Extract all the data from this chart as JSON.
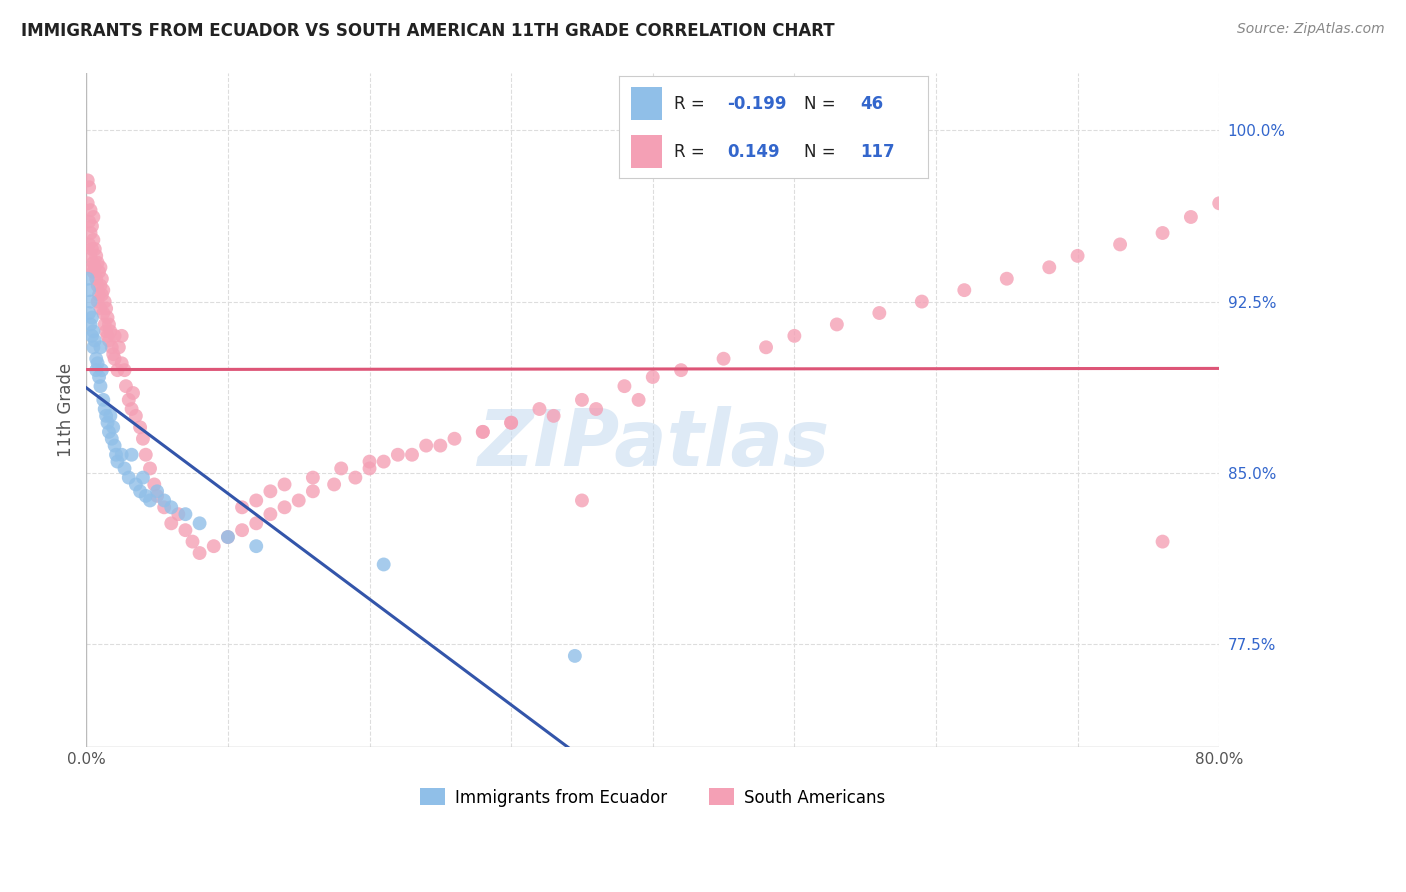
{
  "title": "IMMIGRANTS FROM ECUADOR VS SOUTH AMERICAN 11TH GRADE CORRELATION CHART",
  "source": "Source: ZipAtlas.com",
  "ylabel": "11th Grade",
  "xlim": [
    0.0,
    0.8
  ],
  "ylim": [
    0.73,
    1.025
  ],
  "xtick_positions": [
    0.0,
    0.1,
    0.2,
    0.3,
    0.4,
    0.5,
    0.6,
    0.7,
    0.8
  ],
  "xticklabels": [
    "0.0%",
    "",
    "",
    "",
    "",
    "",
    "",
    "",
    "80.0%"
  ],
  "ytick_right_pos": [
    1.0,
    0.925,
    0.85,
    0.775
  ],
  "ytick_right_labels": [
    "100.0%",
    "92.5%",
    "85.0%",
    "77.5%"
  ],
  "blue_color": "#90BFE8",
  "pink_color": "#F4A0B5",
  "blue_line_color": "#3355AA",
  "pink_line_color": "#DD5577",
  "watermark_color": "#C8DCF0",
  "ecuador_x": [
    0.001,
    0.002,
    0.002,
    0.003,
    0.003,
    0.004,
    0.004,
    0.005,
    0.005,
    0.006,
    0.007,
    0.007,
    0.008,
    0.009,
    0.01,
    0.01,
    0.011,
    0.012,
    0.013,
    0.014,
    0.015,
    0.016,
    0.017,
    0.018,
    0.019,
    0.02,
    0.021,
    0.022,
    0.025,
    0.027,
    0.03,
    0.032,
    0.035,
    0.038,
    0.04,
    0.042,
    0.045,
    0.05,
    0.055,
    0.06,
    0.07,
    0.08,
    0.1,
    0.12,
    0.21,
    0.345
  ],
  "ecuador_y": [
    0.935,
    0.93,
    0.92,
    0.925,
    0.915,
    0.918,
    0.91,
    0.912,
    0.905,
    0.908,
    0.9,
    0.895,
    0.898,
    0.892,
    0.905,
    0.888,
    0.895,
    0.882,
    0.878,
    0.875,
    0.872,
    0.868,
    0.875,
    0.865,
    0.87,
    0.862,
    0.858,
    0.855,
    0.858,
    0.852,
    0.848,
    0.858,
    0.845,
    0.842,
    0.848,
    0.84,
    0.838,
    0.842,
    0.838,
    0.835,
    0.832,
    0.828,
    0.822,
    0.818,
    0.81,
    0.77
  ],
  "south_x": [
    0.001,
    0.001,
    0.002,
    0.002,
    0.002,
    0.003,
    0.003,
    0.003,
    0.004,
    0.004,
    0.004,
    0.005,
    0.005,
    0.005,
    0.005,
    0.006,
    0.006,
    0.007,
    0.007,
    0.008,
    0.008,
    0.008,
    0.009,
    0.009,
    0.01,
    0.01,
    0.01,
    0.011,
    0.011,
    0.012,
    0.012,
    0.013,
    0.013,
    0.014,
    0.014,
    0.015,
    0.015,
    0.016,
    0.016,
    0.017,
    0.018,
    0.019,
    0.02,
    0.02,
    0.022,
    0.023,
    0.025,
    0.025,
    0.027,
    0.028,
    0.03,
    0.032,
    0.033,
    0.035,
    0.038,
    0.04,
    0.042,
    0.045,
    0.048,
    0.05,
    0.055,
    0.06,
    0.065,
    0.07,
    0.075,
    0.08,
    0.09,
    0.1,
    0.11,
    0.12,
    0.13,
    0.14,
    0.15,
    0.16,
    0.175,
    0.19,
    0.2,
    0.21,
    0.23,
    0.25,
    0.28,
    0.3,
    0.32,
    0.35,
    0.38,
    0.4,
    0.42,
    0.45,
    0.48,
    0.5,
    0.53,
    0.56,
    0.59,
    0.62,
    0.65,
    0.68,
    0.7,
    0.73,
    0.76,
    0.78,
    0.8,
    0.35,
    0.11,
    0.12,
    0.13,
    0.14,
    0.16,
    0.18,
    0.2,
    0.22,
    0.24,
    0.26,
    0.28,
    0.3,
    0.33,
    0.36,
    0.39,
    0.76
  ],
  "south_y": [
    0.978,
    0.968,
    0.975,
    0.96,
    0.95,
    0.965,
    0.955,
    0.945,
    0.958,
    0.948,
    0.94,
    0.962,
    0.952,
    0.942,
    0.938,
    0.948,
    0.94,
    0.945,
    0.935,
    0.942,
    0.932,
    0.925,
    0.938,
    0.928,
    0.94,
    0.932,
    0.922,
    0.935,
    0.928,
    0.93,
    0.92,
    0.925,
    0.915,
    0.922,
    0.912,
    0.918,
    0.91,
    0.915,
    0.908,
    0.912,
    0.905,
    0.902,
    0.91,
    0.9,
    0.895,
    0.905,
    0.91,
    0.898,
    0.895,
    0.888,
    0.882,
    0.878,
    0.885,
    0.875,
    0.87,
    0.865,
    0.858,
    0.852,
    0.845,
    0.84,
    0.835,
    0.828,
    0.832,
    0.825,
    0.82,
    0.815,
    0.818,
    0.822,
    0.825,
    0.828,
    0.832,
    0.835,
    0.838,
    0.842,
    0.845,
    0.848,
    0.852,
    0.855,
    0.858,
    0.862,
    0.868,
    0.872,
    0.878,
    0.882,
    0.888,
    0.892,
    0.895,
    0.9,
    0.905,
    0.91,
    0.915,
    0.92,
    0.925,
    0.93,
    0.935,
    0.94,
    0.945,
    0.95,
    0.955,
    0.962,
    0.968,
    0.838,
    0.835,
    0.838,
    0.842,
    0.845,
    0.848,
    0.852,
    0.855,
    0.858,
    0.862,
    0.865,
    0.868,
    0.872,
    0.875,
    0.878,
    0.882,
    0.82
  ]
}
